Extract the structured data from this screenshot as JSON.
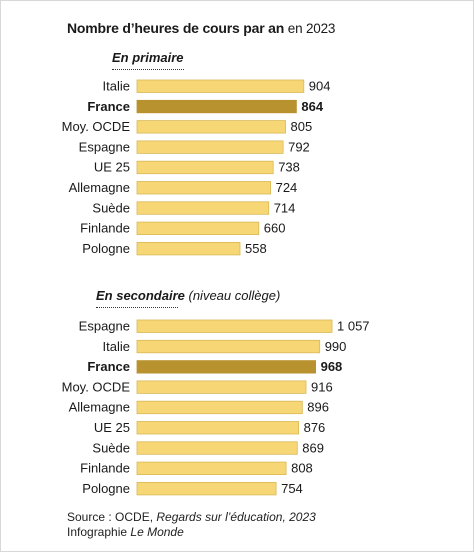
{
  "title": {
    "main": "Nombre d’heures de cours par an",
    "sub": "en 2023"
  },
  "colors": {
    "bar": "#f7d775",
    "bar_highlight": "#b8922e",
    "bar_outline": "#d8b955"
  },
  "chart_data": [
    {
      "type": "bar",
      "orientation": "horizontal",
      "title": "En primaire",
      "subtitle": "",
      "highlight": "France",
      "categories": [
        "Italie",
        "France",
        "Moy. OCDE",
        "Espagne",
        "UE 25",
        "Allemagne",
        "Suède",
        "Finlande",
        "Pologne"
      ],
      "values": [
        904,
        864,
        805,
        792,
        738,
        724,
        714,
        660,
        558
      ],
      "value_labels": [
        "904",
        "864",
        "805",
        "792",
        "738",
        "724",
        "714",
        "660",
        "558"
      ]
    },
    {
      "type": "bar",
      "orientation": "horizontal",
      "title": "En secondaire",
      "subtitle": "(niveau collège)",
      "highlight": "France",
      "categories": [
        "Espagne",
        "Italie",
        "France",
        "Moy. OCDE",
        "Allemagne",
        "UE 25",
        "Suède",
        "Finlande",
        "Pologne"
      ],
      "values": [
        1057,
        990,
        968,
        916,
        896,
        876,
        869,
        808,
        754
      ],
      "value_labels": [
        "1 057",
        "990",
        "968",
        "916",
        "896",
        "876",
        "869",
        "808",
        "754"
      ]
    }
  ],
  "source": {
    "prefix": "Source : OCDE,",
    "publication": "Regards sur l’éducation, 2023",
    "credit_prefix": "Infographie",
    "credit_name": "Le Monde"
  }
}
